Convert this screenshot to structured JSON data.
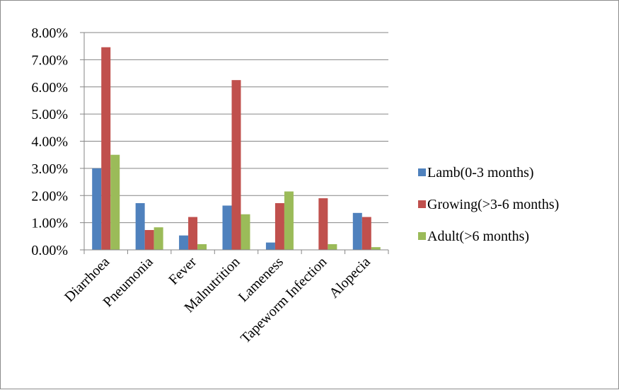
{
  "chart_data": {
    "type": "bar",
    "categories": [
      "Diarrhoea",
      "Pneumonia",
      "Fever",
      "Malnutrition",
      "Lameness",
      "Tapeworm Infection",
      "Alopecia"
    ],
    "series": [
      {
        "name": "Lamb(0-3 months)",
        "color": "#4f81bd",
        "values": [
          0.03,
          0.0172,
          0.0053,
          0.0163,
          0.0027,
          0.0,
          0.0136
        ]
      },
      {
        "name": "Growing(>3-6 months)",
        "color": "#c0504d",
        "values": [
          0.0746,
          0.0073,
          0.0121,
          0.0625,
          0.0172,
          0.019,
          0.0121
        ]
      },
      {
        "name": "Adult(>6 months)",
        "color": "#9bbb59",
        "values": [
          0.035,
          0.0083,
          0.0021,
          0.0131,
          0.0215,
          0.0021,
          0.001
        ]
      }
    ],
    "ylim": [
      0,
      0.08
    ],
    "yticks": [
      "0.00%",
      "1.00%",
      "2.00%",
      "3.00%",
      "4.00%",
      "5.00%",
      "6.00%",
      "7.00%",
      "8.00%"
    ],
    "grid": true,
    "legend_position": "right"
  }
}
